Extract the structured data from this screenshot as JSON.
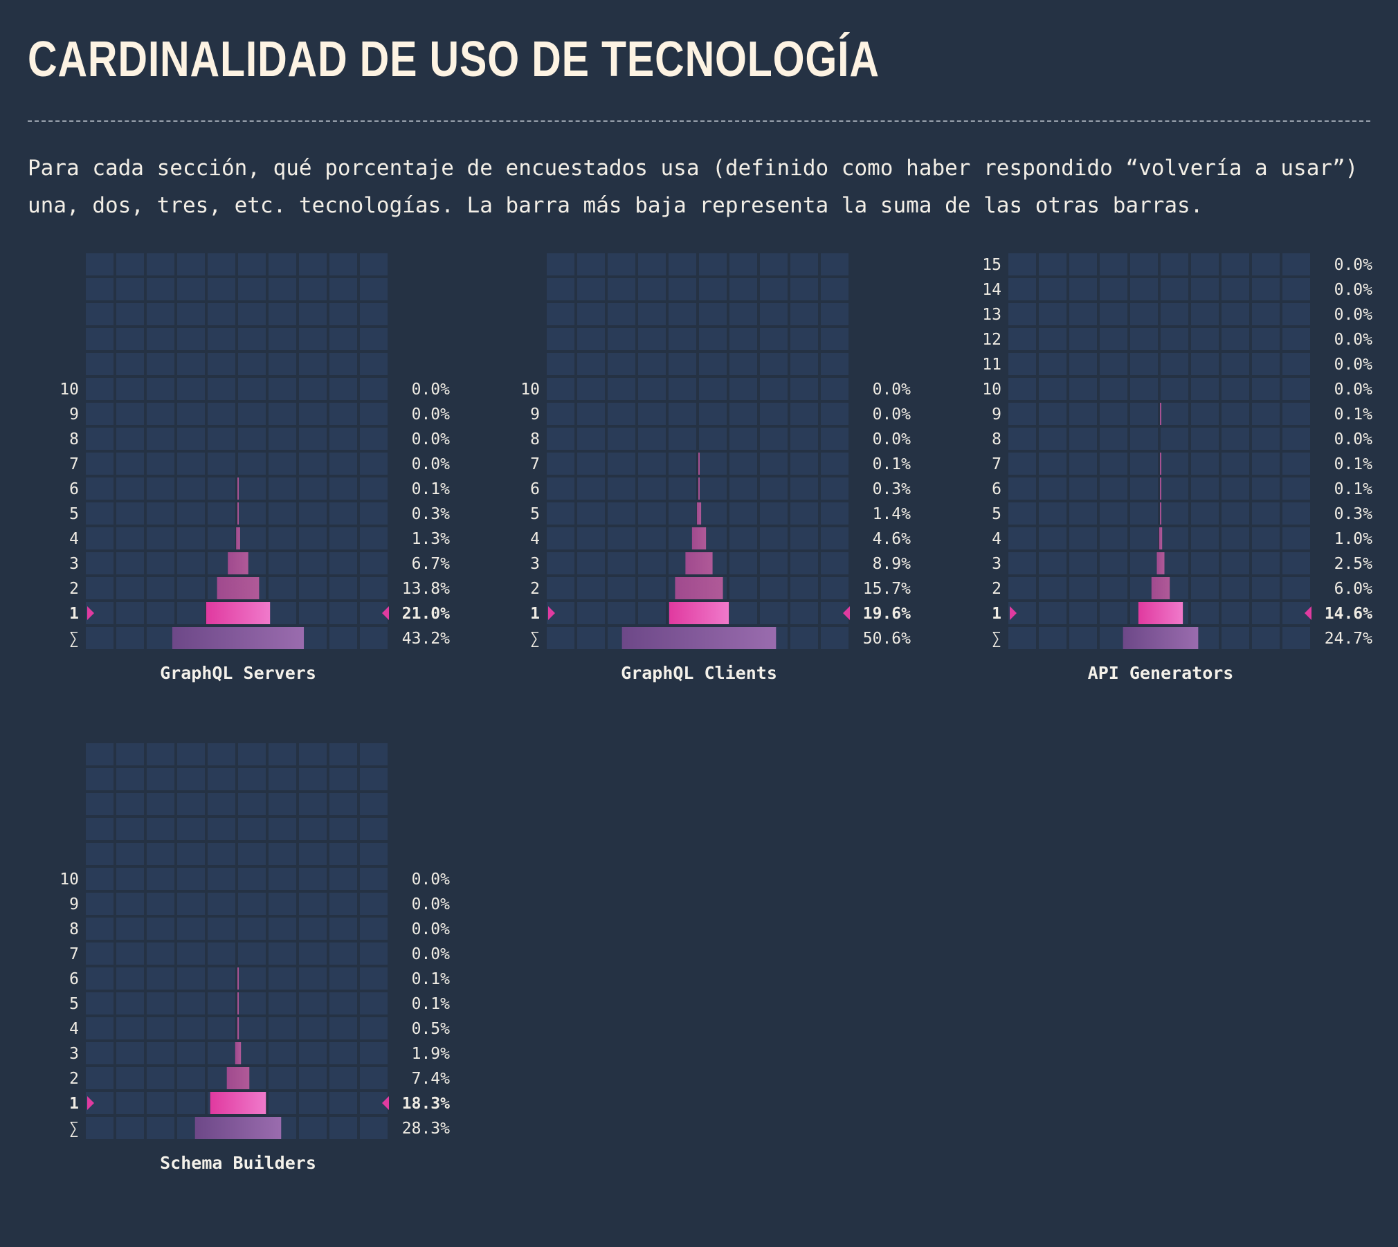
{
  "page": {
    "title": "CARDINALIDAD DE USO DE TECNOLOGÍA",
    "description_line1": "Para cada sección, qué porcentaje de encuestados usa (definido como haber respondido “volvería a usar”)",
    "description_line2": "una, dos, tres, etc. tecnologías. La barra más baja representa la suma de las otras barras."
  },
  "colors": {
    "background": "#253244",
    "grid_cell": "#2a3c58",
    "bar_pink_dark": "#e0399f",
    "bar_pink_light": "#f07acb",
    "bar_mauve": "#b05a98",
    "sum_purple_dark": "#6d4888",
    "sum_purple_light": "#9a6cae",
    "marker": "#e03ba0"
  },
  "chart_data": [
    {
      "type": "bar",
      "title": "GraphQL Servers",
      "orientation": "horizontal-centered",
      "categories": [
        "10",
        "9",
        "8",
        "7",
        "6",
        "5",
        "4",
        "3",
        "2",
        "1",
        "∑"
      ],
      "values": [
        0.0,
        0.0,
        0.0,
        0.0,
        0.1,
        0.3,
        1.3,
        6.7,
        13.8,
        21.0,
        43.2
      ],
      "value_labels": [
        "0.0%",
        "0.0%",
        "0.0%",
        "0.0%",
        "0.1%",
        "0.3%",
        "1.3%",
        "6.7%",
        "13.8%",
        "21.0%",
        "43.2%"
      ],
      "highlight": "1",
      "unit": "%"
    },
    {
      "type": "bar",
      "title": "GraphQL Clients",
      "orientation": "horizontal-centered",
      "categories": [
        "10",
        "9",
        "8",
        "7",
        "6",
        "5",
        "4",
        "3",
        "2",
        "1",
        "∑"
      ],
      "values": [
        0.0,
        0.0,
        0.0,
        0.1,
        0.3,
        1.4,
        4.6,
        8.9,
        15.7,
        19.6,
        50.6
      ],
      "value_labels": [
        "0.0%",
        "0.0%",
        "0.0%",
        "0.1%",
        "0.3%",
        "1.4%",
        "4.6%",
        "8.9%",
        "15.7%",
        "19.6%",
        "50.6%"
      ],
      "highlight": "1",
      "unit": "%"
    },
    {
      "type": "bar",
      "title": "API Generators",
      "orientation": "horizontal-centered",
      "categories": [
        "15",
        "14",
        "13",
        "12",
        "11",
        "10",
        "9",
        "8",
        "7",
        "6",
        "5",
        "4",
        "3",
        "2",
        "1",
        "∑"
      ],
      "values": [
        0.0,
        0.0,
        0.0,
        0.0,
        0.0,
        0.0,
        0.1,
        0.0,
        0.1,
        0.1,
        0.3,
        1.0,
        2.5,
        6.0,
        14.6,
        24.7
      ],
      "value_labels": [
        "0.0%",
        "0.0%",
        "0.0%",
        "0.0%",
        "0.0%",
        "0.0%",
        "0.1%",
        "0.0%",
        "0.1%",
        "0.1%",
        "0.3%",
        "1.0%",
        "2.5%",
        "6.0%",
        "14.6%",
        "24.7%"
      ],
      "highlight": "1",
      "unit": "%"
    },
    {
      "type": "bar",
      "title": "Schema Builders",
      "orientation": "horizontal-centered",
      "categories": [
        "10",
        "9",
        "8",
        "7",
        "6",
        "5",
        "4",
        "3",
        "2",
        "1",
        "∑"
      ],
      "values": [
        0.0,
        0.0,
        0.0,
        0.0,
        0.1,
        0.1,
        0.5,
        1.9,
        7.4,
        18.3,
        28.3
      ],
      "value_labels": [
        "0.0%",
        "0.0%",
        "0.0%",
        "0.0%",
        "0.1%",
        "0.1%",
        "0.5%",
        "1.9%",
        "7.4%",
        "18.3%",
        "28.3%"
      ],
      "highlight": "1",
      "unit": "%"
    }
  ]
}
